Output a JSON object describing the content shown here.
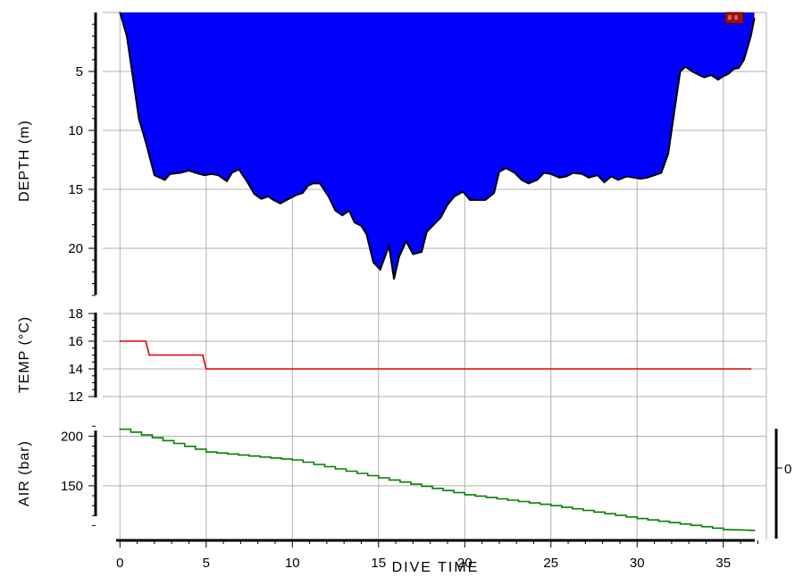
{
  "chart_data": [
    {
      "type": "area",
      "ylabel": "DEPTH (m)",
      "xlabel": "DIVE TIME",
      "inverted_y": true,
      "ylim": [
        0,
        25
      ],
      "yticks": [
        5,
        10,
        15,
        20
      ],
      "xlim": [
        -1,
        37.5
      ],
      "xticks": [
        0,
        5,
        10,
        15,
        20,
        25,
        30,
        35
      ],
      "grid": true,
      "fill_color": "#0000ff",
      "line_color": "#000000",
      "marker_label": "at 37 min",
      "series": [
        {
          "x": [
            0.0,
            0.4,
            0.7,
            1.1,
            1.5,
            2.0,
            2.6,
            2.9,
            3.5,
            4.0,
            4.4,
            4.9,
            5.3,
            5.7,
            6.2,
            6.5,
            6.9,
            7.4,
            7.8,
            8.2,
            8.6,
            8.9,
            9.3,
            9.8,
            10.2,
            10.6,
            10.9,
            11.2,
            11.6,
            12.1,
            12.5,
            12.9,
            13.3,
            13.6,
            14.0,
            14.3,
            14.7,
            15.1,
            15.6,
            15.9,
            16.2,
            16.6,
            17.0,
            17.5,
            17.8,
            18.2,
            18.6,
            19.0,
            19.4,
            19.9,
            20.3,
            20.8,
            21.2,
            21.7,
            22.0,
            22.4,
            22.9,
            23.3,
            23.7,
            24.2,
            24.6,
            25.0,
            25.5,
            25.9,
            26.3,
            26.8,
            27.2,
            27.7,
            28.1,
            28.5,
            28.9,
            29.4,
            29.8,
            30.2,
            30.6,
            31.0,
            31.4,
            31.8,
            32.2,
            32.5,
            32.8,
            33.2,
            33.6,
            33.9,
            34.3,
            34.7,
            35.0,
            35.3,
            35.6,
            35.9,
            36.2,
            36.6,
            36.8
          ],
          "values": [
            0.0,
            2.0,
            5.0,
            9.0,
            11.0,
            13.8,
            14.2,
            13.7,
            13.6,
            13.4,
            13.6,
            13.8,
            13.7,
            13.8,
            14.3,
            13.6,
            13.3,
            14.4,
            15.4,
            15.8,
            15.6,
            15.9,
            16.2,
            15.8,
            15.5,
            15.3,
            14.7,
            14.5,
            14.5,
            15.6,
            16.8,
            17.2,
            16.8,
            17.8,
            18.1,
            18.8,
            21.2,
            21.8,
            19.8,
            22.6,
            20.7,
            19.4,
            20.5,
            20.3,
            18.6,
            18.0,
            17.4,
            16.3,
            15.6,
            15.2,
            15.9,
            15.9,
            15.9,
            15.3,
            13.5,
            13.2,
            13.6,
            14.2,
            14.5,
            14.2,
            13.6,
            13.7,
            14.0,
            13.9,
            13.6,
            13.7,
            14.0,
            13.8,
            14.4,
            13.9,
            14.2,
            13.9,
            14.0,
            14.1,
            14.0,
            13.8,
            13.6,
            12.0,
            8.0,
            5.0,
            4.6,
            5.0,
            5.3,
            5.5,
            5.3,
            5.7,
            5.4,
            5.2,
            4.8,
            4.7,
            4.0,
            2.0,
            0.5
          ]
        }
      ]
    },
    {
      "type": "line",
      "ylabel": "TEMP (°C)",
      "ylim": [
        12,
        18
      ],
      "yticks": [
        12,
        14,
        16,
        18
      ],
      "color": "#e00000",
      "series": [
        {
          "x": [
            0.0,
            1.5,
            1.7,
            4.8,
            5.0,
            36.6
          ],
          "values": [
            16,
            16,
            15,
            15,
            14,
            14
          ]
        }
      ]
    },
    {
      "type": "line",
      "ylabel": "AIR (bar)",
      "ylim": [
        95,
        212
      ],
      "yticks": [
        150,
        200
      ],
      "color": "#008000",
      "right_axis_tick": "0",
      "series": [
        {
          "x": [
            0.0,
            5.0,
            10.0,
            15.0,
            20.0,
            25.0,
            30.0,
            35.0,
            36.8
          ],
          "values": [
            207,
            184,
            176,
            158,
            141,
            130,
            117,
            106,
            105
          ]
        }
      ]
    }
  ]
}
